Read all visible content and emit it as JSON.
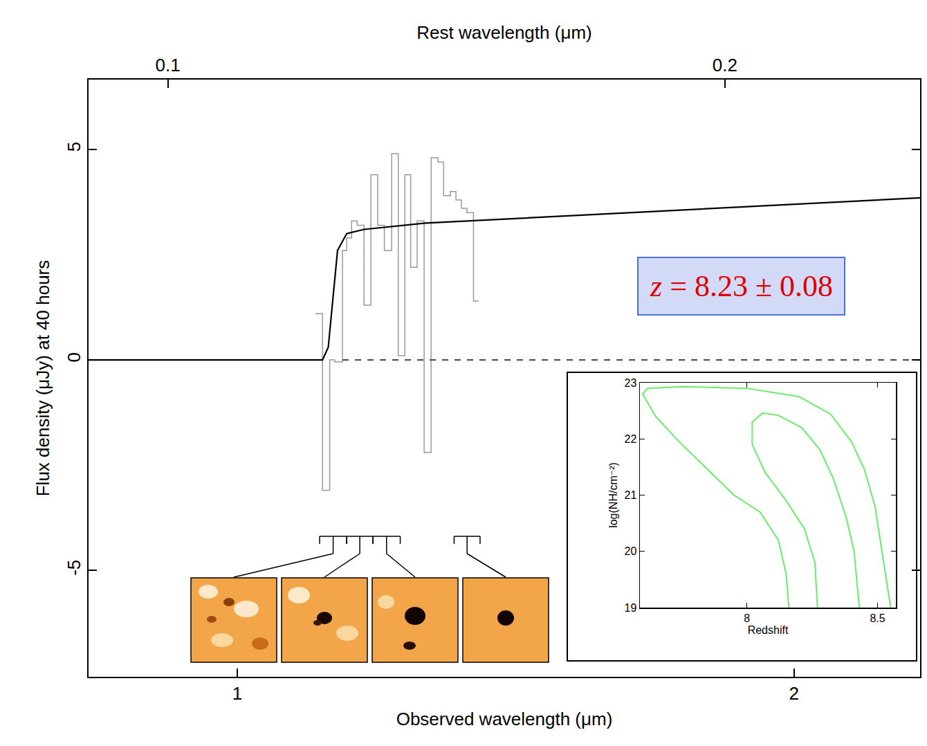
{
  "chart_data": [
    {
      "type": "line",
      "xlabel": "Observed wavelength (μm)",
      "ylabel": "Flux density (μJy) at 40 hours",
      "x2label": "Rest wavelength (μm)",
      "log": "x",
      "grid": false,
      "xlim": [
        0.831,
        2.34
      ],
      "xticks": [
        1,
        2
      ],
      "x2lim": [
        0.0906,
        0.255
      ],
      "x2ticks": [
        0.1,
        0.2
      ],
      "ylim": [
        -7.53,
        6.66
      ],
      "yticks": [
        -5,
        0,
        5
      ],
      "annotation": "z = 8.23 ± 0.08",
      "series": [
        {
          "type": "step",
          "color": "#999999",
          "bins": [
            1.102,
            1.112,
            1.122,
            1.129,
            1.14,
            1.146,
            1.153,
            1.161,
            1.171,
            1.181,
            1.191,
            1.201,
            1.212,
            1.222,
            1.232,
            1.241,
            1.251,
            1.262,
            1.273,
            1.284,
            1.293,
            1.304,
            1.313,
            1.322,
            1.331,
            1.342,
            1.351
          ],
          "values": [
            1.1,
            -3.1,
            0.0,
            -0.05,
            2.6,
            2.9,
            3.3,
            3.2,
            1.3,
            4.4,
            3.2,
            2.6,
            4.9,
            0.1,
            4.4,
            2.2,
            3.3,
            -2.2,
            4.8,
            4.7,
            3.9,
            4.0,
            3.8,
            3.6,
            3.5,
            1.4
          ]
        },
        {
          "type": "line",
          "color": "#000000",
          "x": [
            0.831,
            1.112,
            1.12,
            1.127,
            1.133,
            1.146,
            1.171,
            1.264,
            2.34
          ],
          "values": [
            0,
            0,
            0.3,
            1.6,
            2.6,
            3.0,
            3.1,
            3.25,
            3.85
          ]
        },
        {
          "type": "line",
          "color": "#555555",
          "line_style": "dashed",
          "x": [
            1.14,
            2.34
          ],
          "values": [
            0,
            0
          ]
        }
      ],
      "bands": [
        [
          1.108,
          1.146
        ],
        [
          1.146,
          1.184
        ],
        [
          1.184,
          1.225
        ],
        [
          1.31,
          1.353
        ]
      ]
    },
    {
      "type": "line",
      "xlabel": "Redshift",
      "ylabel": "log(NH/cm⁻²)",
      "grid": false,
      "xlim": [
        7.59,
        8.57
      ],
      "xticks": [
        8,
        8.5
      ],
      "ylim": [
        19,
        23
      ],
      "yticks": [
        19,
        20,
        21,
        22,
        23
      ],
      "series": [
        {
          "color": "#66ee66",
          "x": [
            8.16,
            8.15,
            8.12,
            8.05,
            7.95,
            7.85,
            7.74,
            7.65,
            7.6,
            7.62,
            7.75,
            8.0,
            8.2,
            8.32,
            8.4,
            8.45,
            8.49,
            8.51,
            8.53,
            8.55
          ],
          "values": [
            19,
            19.6,
            20.2,
            20.7,
            21.0,
            21.45,
            21.95,
            22.4,
            22.8,
            22.9,
            22.93,
            22.9,
            22.75,
            22.44,
            21.95,
            21.45,
            20.8,
            20.2,
            19.6,
            19
          ]
        },
        {
          "color": "#66ee66",
          "x": [
            8.27,
            8.26,
            8.22,
            8.15,
            8.07,
            8.02,
            8.02,
            8.06,
            8.12,
            8.21,
            8.28,
            8.33,
            8.38,
            8.41,
            8.43
          ],
          "values": [
            19,
            19.8,
            20.4,
            20.9,
            21.4,
            21.9,
            22.3,
            22.46,
            22.42,
            22.2,
            21.8,
            21.3,
            20.6,
            20.0,
            19
          ]
        }
      ]
    }
  ]
}
